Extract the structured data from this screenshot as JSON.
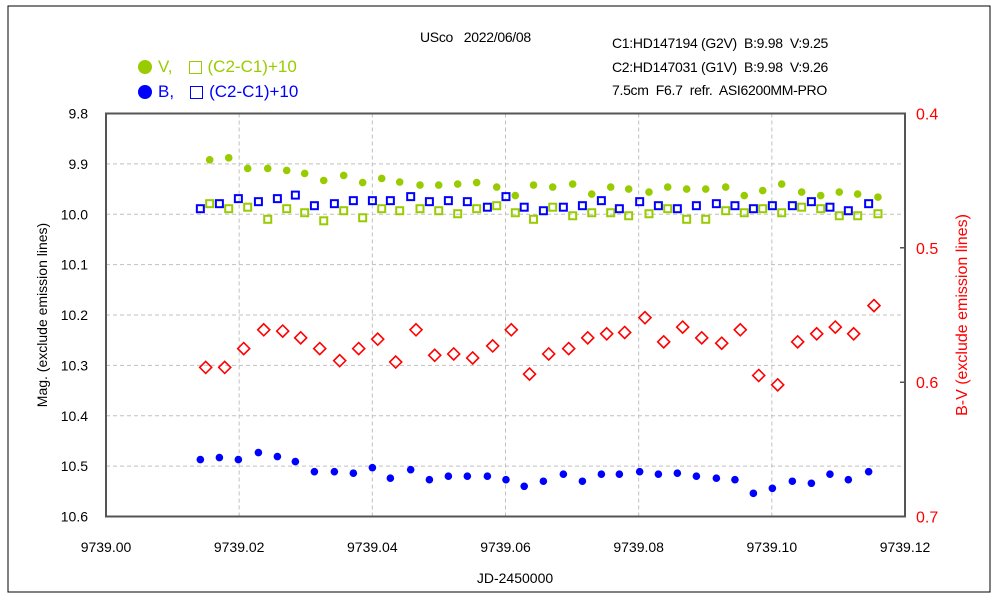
{
  "header": {
    "object_date": "USco   2022/06/08",
    "comp1": "C1:HD147194 (G2V)  B:9.98  V:9.25",
    "comp2": "C2:HD147031 (G1V)  B:9.98  V:9.26",
    "equipment": "7.5cm  F6.7  refr.  ASI6200MM-PRO"
  },
  "legend": {
    "v_label": "V,",
    "v_check_label": "(C2-C1)+10",
    "b_label": "B,",
    "b_check_label": "(C2-C1)+10"
  },
  "colors": {
    "V": "#99cc00",
    "B": "#0000ff",
    "BV": "#ff0000",
    "grid": "#c0c0c0"
  },
  "chart_data": {
    "type": "scatter",
    "xlabel": "JD-2450000",
    "ylabel": "Mag. (exclude emission lines)",
    "y2label": "B-V (exclude emission lines)",
    "xlim": [
      9739.0,
      9739.12
    ],
    "ylim": [
      10.6,
      9.8
    ],
    "y2lim": [
      0.7,
      0.4
    ],
    "xticks": [
      "9739.00",
      "9739.02",
      "9739.04",
      "9739.06",
      "9739.08",
      "9739.10",
      "9739.12"
    ],
    "yticks": [
      "9.8",
      "9.9",
      "10.0",
      "10.1",
      "10.2",
      "10.3",
      "10.4",
      "10.5",
      "10.6"
    ],
    "y2ticks": [
      "0.4",
      "0.5",
      "0.6",
      "0.7"
    ],
    "grid": true,
    "t_offsets": [
      0.01557,
      0.01843,
      0.02128,
      0.02429,
      0.02714,
      0.02984,
      0.0327,
      0.0357,
      0.03855,
      0.04141,
      0.04411,
      0.04716,
      0.04997,
      0.05282,
      0.05567,
      0.05868,
      0.06147,
      0.06421,
      0.06709,
      0.07009,
      0.07295,
      0.0758,
      0.0785,
      0.08155,
      0.08436,
      0.08721,
      0.09007,
      0.09307,
      0.09586,
      0.09863,
      0.10148,
      0.10448,
      0.10734,
      0.11013,
      0.11289,
      0.11594
    ],
    "series": [
      {
        "name": "V",
        "marker": "dot",
        "axis": "left",
        "t_shift": 0,
        "values": [
          9.892,
          9.888,
          9.909,
          9.909,
          9.913,
          9.919,
          9.933,
          9.923,
          9.937,
          9.929,
          9.936,
          9.942,
          9.942,
          9.94,
          9.937,
          9.946,
          9.963,
          9.942,
          9.946,
          9.94,
          9.96,
          9.946,
          9.95,
          9.956,
          9.946,
          9.95,
          9.95,
          9.946,
          9.963,
          9.953,
          9.94,
          9.956,
          9.963,
          9.956,
          9.96,
          9.966
        ]
      },
      {
        "name": "V (C2-C1)+10",
        "marker": "square",
        "axis": "left",
        "t_shift": 0,
        "values": [
          9.979,
          9.989,
          9.986,
          10.01,
          9.989,
          9.997,
          10.013,
          9.993,
          10.007,
          9.989,
          9.993,
          9.989,
          9.993,
          9.999,
          9.989,
          9.983,
          9.997,
          10.01,
          9.986,
          10.003,
          9.997,
          9.997,
          10.003,
          9.999,
          9.989,
          10.01,
          10.01,
          9.993,
          9.997,
          9.989,
          9.997,
          9.986,
          9.989,
          10.003,
          10.003,
          9.999
        ]
      },
      {
        "name": "B",
        "marker": "dot",
        "axis": "left",
        "t_shift": -0.0014,
        "values": [
          10.487,
          10.483,
          10.487,
          10.473,
          10.481,
          10.491,
          10.511,
          10.511,
          10.514,
          10.503,
          10.524,
          10.507,
          10.527,
          10.52,
          10.52,
          10.52,
          10.527,
          10.54,
          10.53,
          10.516,
          10.53,
          10.516,
          10.516,
          10.511,
          10.516,
          10.514,
          10.52,
          10.524,
          10.527,
          10.554,
          10.544,
          10.53,
          10.534,
          10.516,
          10.527,
          10.511
        ]
      },
      {
        "name": "B (C2-C1)+10",
        "marker": "square",
        "axis": "left",
        "t_shift": -0.0014,
        "values": [
          9.989,
          9.979,
          9.969,
          9.975,
          9.969,
          9.962,
          9.983,
          9.979,
          9.973,
          9.973,
          9.973,
          9.965,
          9.975,
          9.973,
          9.975,
          9.986,
          9.965,
          9.986,
          9.993,
          9.986,
          9.983,
          9.973,
          9.989,
          9.975,
          9.983,
          9.989,
          9.983,
          9.979,
          9.983,
          9.989,
          9.983,
          9.983,
          9.975,
          9.986,
          9.993,
          9.979
        ]
      },
      {
        "name": "B-V",
        "marker": "diamond",
        "axis": "right",
        "t_shift": -0.0006,
        "values": [
          0.589,
          0.589,
          0.575,
          0.561,
          0.562,
          0.567,
          0.575,
          0.584,
          0.575,
          0.568,
          0.585,
          0.561,
          0.58,
          0.579,
          0.582,
          0.573,
          0.561,
          0.594,
          0.579,
          0.575,
          0.567,
          0.564,
          0.563,
          0.552,
          0.57,
          0.559,
          0.567,
          0.571,
          0.561,
          0.595,
          0.602,
          0.57,
          0.564,
          0.559,
          0.564,
          0.543
        ]
      }
    ]
  }
}
